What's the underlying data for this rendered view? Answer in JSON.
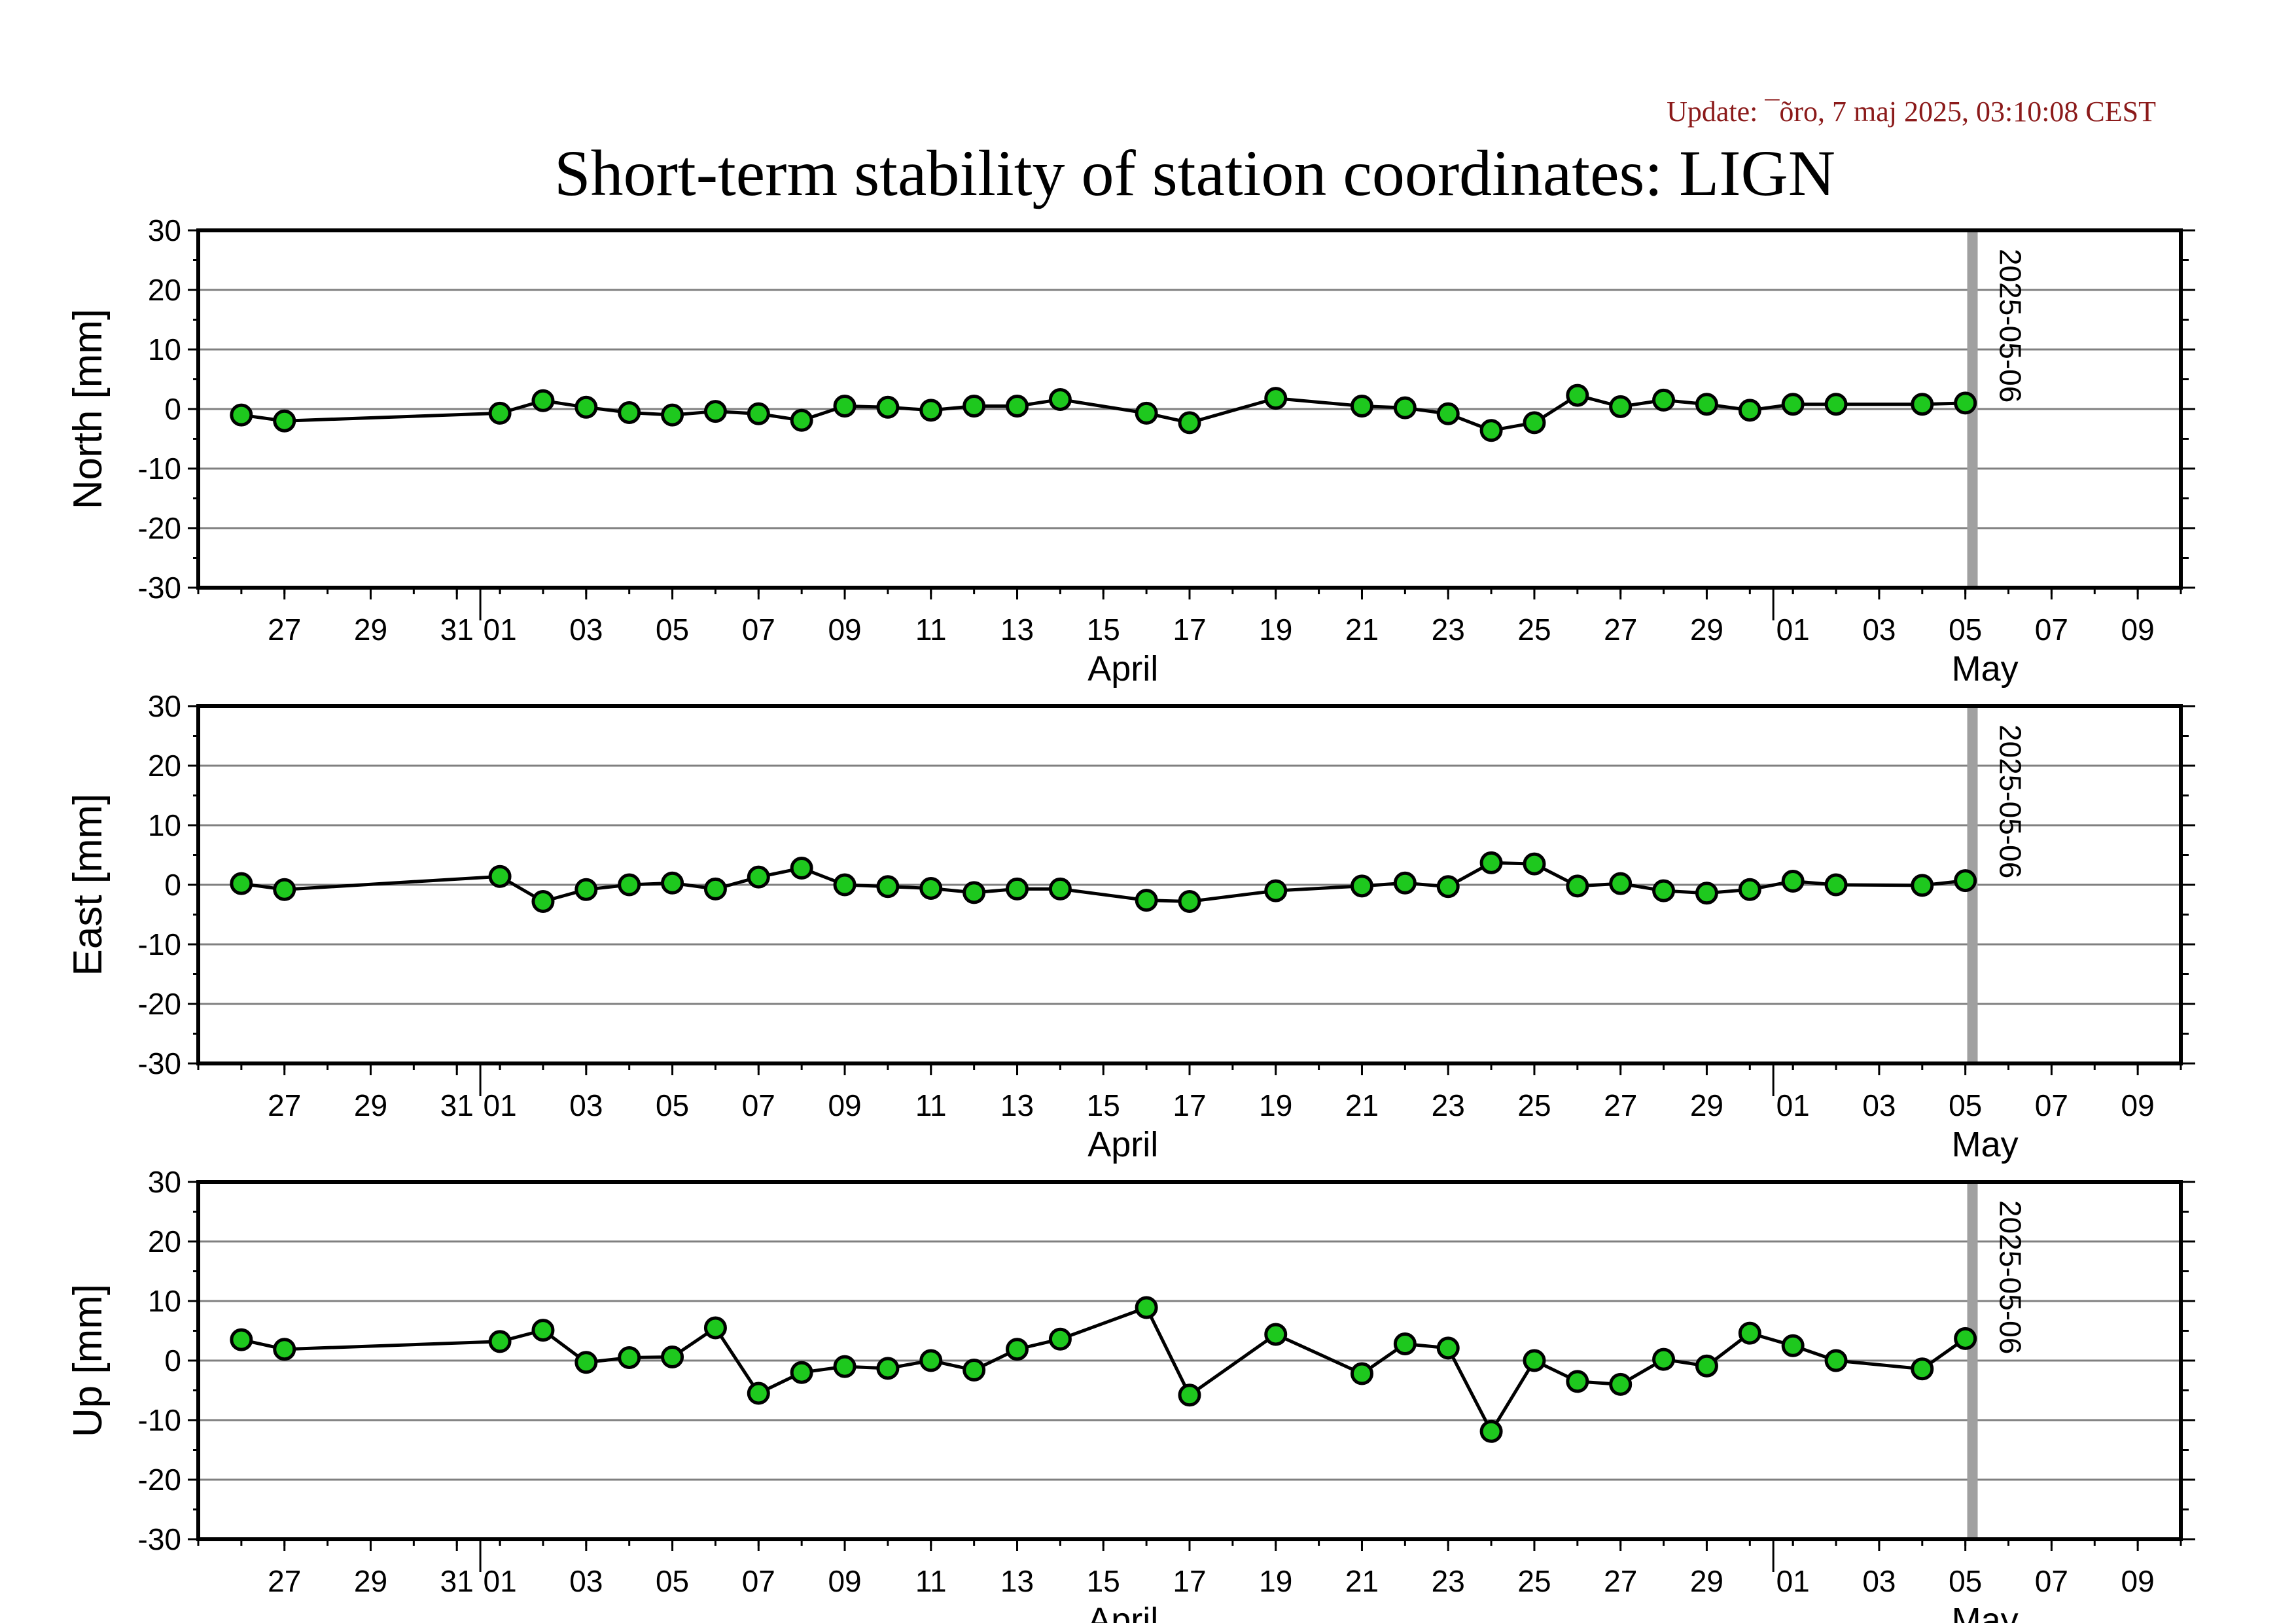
{
  "update_text": "Update: ¯õro, 7 maj 2025, 03:10:08 CEST",
  "title": "Short-term stability of station coordinates: LIGN",
  "colors": {
    "update": "#8b1a1a",
    "marker_fill": "#1ec81e",
    "marker_stroke": "#000000",
    "line": "#000000",
    "grid": "#808080",
    "vline": "#a0a0a0"
  },
  "chart_data": [
    {
      "type": "line",
      "panel": "north",
      "ylabel": "North [mm]",
      "ylim": [
        -30,
        30
      ],
      "yticks": [
        30,
        20,
        10,
        0,
        -10,
        -20,
        -30
      ],
      "xlim": [
        "2025-03-25",
        "2025-05-10"
      ],
      "xtick_labels": [
        "27",
        "29",
        "31",
        "01",
        "03",
        "05",
        "07",
        "09",
        "11",
        "13",
        "15",
        "17",
        "19",
        "21",
        "23",
        "25",
        "27",
        "29",
        "01",
        "03",
        "05",
        "07",
        "09"
      ],
      "month_labels": [
        "April",
        "May"
      ],
      "vline_date": "2025-05-06",
      "vline_label": "2025-05-06",
      "grid": true,
      "series": [
        {
          "x": [
            "2025-03-26",
            "2025-03-27",
            "2025-04-01",
            "2025-04-02",
            "2025-04-03",
            "2025-04-04",
            "2025-04-05",
            "2025-04-06",
            "2025-04-07",
            "2025-04-08",
            "2025-04-09",
            "2025-04-10",
            "2025-04-11",
            "2025-04-12",
            "2025-04-13",
            "2025-04-14",
            "2025-04-16",
            "2025-04-17",
            "2025-04-19",
            "2025-04-21",
            "2025-04-22",
            "2025-04-23",
            "2025-04-24",
            "2025-04-25",
            "2025-04-26",
            "2025-04-27",
            "2025-04-28",
            "2025-04-29",
            "2025-04-30",
            "2025-05-01",
            "2025-05-02",
            "2025-05-04",
            "2025-05-05"
          ],
          "values": [
            -1,
            -2,
            -0.7,
            1.4,
            0.3,
            -0.6,
            -1,
            -0.4,
            -0.8,
            -1.9,
            0.5,
            0.3,
            -0.2,
            0.5,
            0.5,
            1.6,
            -0.7,
            -2.3,
            1.8,
            0.5,
            0.2,
            -0.8,
            -3.6,
            -2.3,
            2.3,
            0.4,
            1.5,
            0.8,
            -0.2,
            0.8,
            0.8,
            0.8,
            1
          ]
        }
      ]
    },
    {
      "type": "line",
      "panel": "east",
      "ylabel": "East [mm]",
      "ylim": [
        -30,
        30
      ],
      "yticks": [
        30,
        20,
        10,
        0,
        -10,
        -20,
        -30
      ],
      "xlim": [
        "2025-03-25",
        "2025-05-10"
      ],
      "xtick_labels": [
        "27",
        "29",
        "31",
        "01",
        "03",
        "05",
        "07",
        "09",
        "11",
        "13",
        "15",
        "17",
        "19",
        "21",
        "23",
        "25",
        "27",
        "29",
        "01",
        "03",
        "05",
        "07",
        "09"
      ],
      "month_labels": [
        "April",
        "May"
      ],
      "vline_date": "2025-05-06",
      "vline_label": "2025-05-06",
      "grid": true,
      "series": [
        {
          "x": [
            "2025-03-26",
            "2025-03-27",
            "2025-04-01",
            "2025-04-02",
            "2025-04-03",
            "2025-04-04",
            "2025-04-05",
            "2025-04-06",
            "2025-04-07",
            "2025-04-08",
            "2025-04-09",
            "2025-04-10",
            "2025-04-11",
            "2025-04-12",
            "2025-04-13",
            "2025-04-14",
            "2025-04-16",
            "2025-04-17",
            "2025-04-19",
            "2025-04-21",
            "2025-04-22",
            "2025-04-23",
            "2025-04-24",
            "2025-04-25",
            "2025-04-26",
            "2025-04-27",
            "2025-04-28",
            "2025-04-29",
            "2025-04-30",
            "2025-05-01",
            "2025-05-02",
            "2025-05-04",
            "2025-05-05"
          ],
          "values": [
            0.2,
            -0.8,
            1.4,
            -2.8,
            -0.8,
            0,
            0.3,
            -0.7,
            1.3,
            2.8,
            0,
            -0.3,
            -0.6,
            -1.3,
            -0.7,
            -0.7,
            -2.6,
            -2.8,
            -1,
            -0.2,
            0.3,
            -0.3,
            3.7,
            3.5,
            -0.2,
            0.2,
            -1,
            -1.4,
            -0.8,
            0.6,
            0,
            -0.1,
            0.7
          ]
        }
      ]
    },
    {
      "type": "line",
      "panel": "up",
      "ylabel": "Up [mm]",
      "ylim": [
        -30,
        30
      ],
      "yticks": [
        30,
        20,
        10,
        0,
        -10,
        -20,
        -30
      ],
      "xlim": [
        "2025-03-25",
        "2025-05-10"
      ],
      "xtick_labels": [
        "27",
        "29",
        "31",
        "01",
        "03",
        "05",
        "07",
        "09",
        "11",
        "13",
        "15",
        "17",
        "19",
        "21",
        "23",
        "25",
        "27",
        "29",
        "01",
        "03",
        "05",
        "07",
        "09"
      ],
      "month_labels": [
        "April",
        "May"
      ],
      "vline_date": "2025-05-06",
      "vline_label": "2025-05-06",
      "grid": true,
      "series": [
        {
          "x": [
            "2025-03-26",
            "2025-03-27",
            "2025-04-01",
            "2025-04-02",
            "2025-04-03",
            "2025-04-04",
            "2025-04-05",
            "2025-04-06",
            "2025-04-07",
            "2025-04-08",
            "2025-04-09",
            "2025-04-10",
            "2025-04-11",
            "2025-04-12",
            "2025-04-13",
            "2025-04-14",
            "2025-04-16",
            "2025-04-17",
            "2025-04-19",
            "2025-04-21",
            "2025-04-22",
            "2025-04-23",
            "2025-04-24",
            "2025-04-25",
            "2025-04-26",
            "2025-04-27",
            "2025-04-28",
            "2025-04-29",
            "2025-04-30",
            "2025-05-01",
            "2025-05-02",
            "2025-05-04",
            "2025-05-05"
          ],
          "values": [
            3.5,
            1.9,
            3.2,
            5.1,
            -0.3,
            0.5,
            0.6,
            5.5,
            -5.5,
            -2,
            -1,
            -1.3,
            0,
            -1.6,
            1.9,
            3.6,
            8.9,
            -5.8,
            4.4,
            -2.2,
            2.8,
            2.1,
            -11.9,
            0,
            -3.5,
            -4,
            0.2,
            -0.9,
            4.6,
            2.5,
            0,
            -1.4,
            3.7
          ]
        }
      ]
    }
  ]
}
